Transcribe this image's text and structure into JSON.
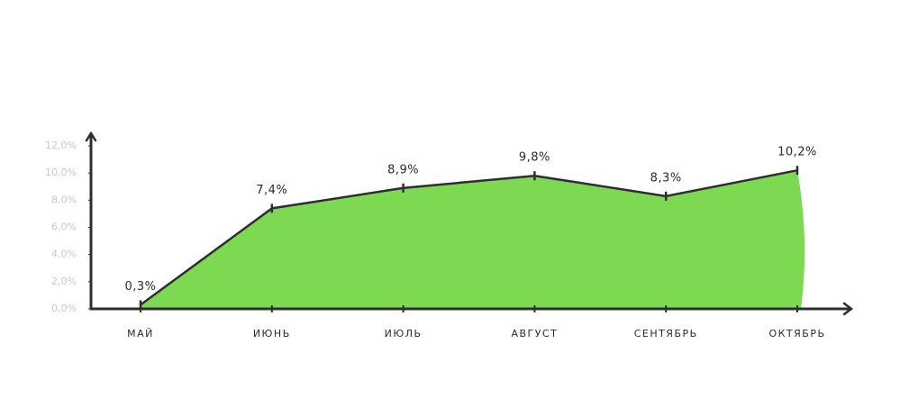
{
  "chart_data": {
    "type": "area",
    "categories": [
      "МАЙ",
      "ИЮНЬ",
      "ИЮЛЬ",
      "АВГУСТ",
      "СЕНТЯБРЬ",
      "ОКТЯБРЬ"
    ],
    "values": [
      0.3,
      7.4,
      8.9,
      9.8,
      8.3,
      10.2
    ],
    "value_labels": [
      "0,3%",
      "7,4%",
      "8,9%",
      "9,8%",
      "8,3%",
      "10,2%"
    ],
    "color": "#7dd852",
    "line_color": "#2e2e2e",
    "ylim": [
      0,
      13
    ],
    "yticks": [
      {
        "value": 0,
        "label": "0,0%"
      },
      {
        "value": 2,
        "label": "2,0%"
      },
      {
        "value": 4,
        "label": "4,0%"
      },
      {
        "value": 6,
        "label": "6,0%"
      },
      {
        "value": 8,
        "label": "8,0%"
      },
      {
        "value": 10,
        "label": "10,0%"
      },
      {
        "value": 12,
        "label": "12,0%"
      }
    ]
  }
}
